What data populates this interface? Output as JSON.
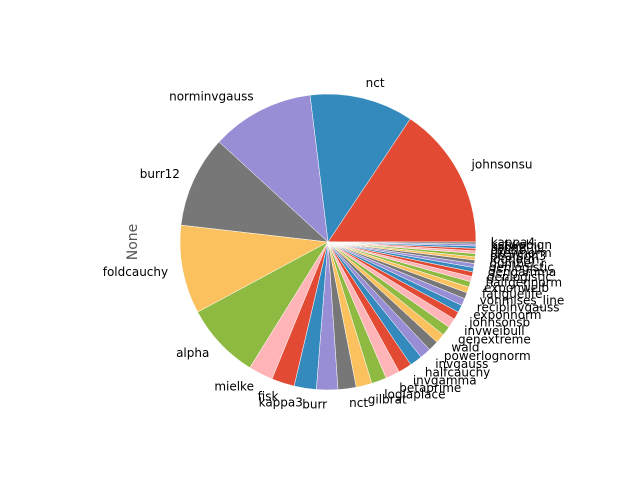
{
  "chart_data": {
    "type": "pie",
    "ylabel": "None",
    "start_angle_deg": 0,
    "direction": "counterclockwise",
    "slices": [
      {
        "label": "johnsonsu",
        "value": 18.1,
        "color": "#E24A33"
      },
      {
        "label": "nct",
        "value": 13.1,
        "color": "#348ABD"
      },
      {
        "label": "norminvgauss",
        "value": 13.0,
        "color": "#988ED5"
      },
      {
        "label": "burr12",
        "value": 11.6,
        "color": "#777777"
      },
      {
        "label": "foldcauchy",
        "value": 11.2,
        "color": "#FBC15E"
      },
      {
        "label": "alpha",
        "value": 9.6,
        "color": "#8EBA42"
      },
      {
        "label": "mielke",
        "value": 3.1,
        "color": "#FFB5B8"
      },
      {
        "label": "fisk",
        "value": 2.9,
        "color": "#E24A33"
      },
      {
        "label": "kappa3",
        "value": 2.8,
        "color": "#348ABD"
      },
      {
        "label": "burr",
        "value": 2.7,
        "color": "#988ED5"
      },
      {
        "label": "nct",
        "value": 2.3,
        "color": "#777777"
      },
      {
        "label": "gilbrat",
        "value": 2.0,
        "color": "#FBC15E"
      },
      {
        "label": "loglaplace",
        "value": 1.9,
        "color": "#8EBA42"
      },
      {
        "label": "betaprime",
        "value": 1.8,
        "color": "#FFB5B8"
      },
      {
        "label": "invgamma",
        "value": 1.7,
        "color": "#E24A33"
      },
      {
        "label": "halfcauchy",
        "value": 1.6,
        "color": "#348ABD"
      },
      {
        "label": "invgauss",
        "value": 1.4,
        "color": "#988ED5"
      },
      {
        "label": "powerlognorm",
        "value": 1.3,
        "color": "#777777"
      },
      {
        "label": "wald",
        "value": 1.2,
        "color": "#FBC15E"
      },
      {
        "label": "genextreme",
        "value": 1.2,
        "color": "#8EBA42"
      },
      {
        "label": "invweibull",
        "value": 1.2,
        "color": "#FFB5B8"
      },
      {
        "label": "johnsonsb",
        "value": 1.0,
        "color": "#E24A33"
      },
      {
        "label": "exponnorm",
        "value": 0.95,
        "color": "#348ABD"
      },
      {
        "label": "recipinvgauss",
        "value": 0.9,
        "color": "#988ED5"
      },
      {
        "label": "vonmises_line",
        "value": 0.8,
        "color": "#777777"
      },
      {
        "label": "fatiguelife",
        "value": 0.75,
        "color": "#FBC15E"
      },
      {
        "label": "exponweib",
        "value": 0.7,
        "color": "#8EBA42"
      },
      {
        "label": "halfgennorm",
        "value": 0.65,
        "color": "#FFB5B8"
      },
      {
        "label": "genlogistic",
        "value": 0.6,
        "color": "#E24A33"
      },
      {
        "label": "gengamma",
        "value": 0.55,
        "color": "#348ABD"
      },
      {
        "label": "genlogistic",
        "value": 0.5,
        "color": "#988ED5"
      },
      {
        "label": "gumbel_r",
        "value": 0.45,
        "color": "#777777"
      },
      {
        "label": "lognorm",
        "value": 0.4,
        "color": "#FBC15E"
      },
      {
        "label": "pearson3",
        "value": 0.4,
        "color": "#8EBA42"
      },
      {
        "label": "skewnorm",
        "value": 0.35,
        "color": "#FFB5B8"
      },
      {
        "label": "dweibull",
        "value": 0.3,
        "color": "#E24A33"
      },
      {
        "label": "ksone",
        "value": 0.3,
        "color": "#348ABD"
      },
      {
        "label": "kstwobign",
        "value": 0.25,
        "color": "#988ED5"
      },
      {
        "label": "kappa4",
        "value": 0.25,
        "color": "#777777"
      }
    ]
  }
}
